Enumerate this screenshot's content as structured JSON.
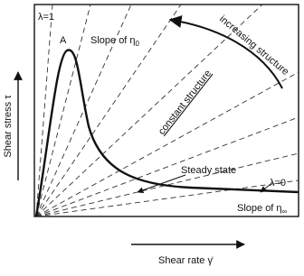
{
  "labels": {
    "lambda_one": "λ=1",
    "peak": "A",
    "slope_zero": {
      "text": "Slope of η",
      "subscript": "0"
    },
    "increasing": "increasing structure",
    "constant": "constant structure",
    "steady": "Steady state",
    "lambda_zero": "λ=0",
    "slope_inf": {
      "text": "Slope of η",
      "subscript": "∞"
    },
    "y_axis": "Shear stress τ",
    "x_axis": "Shear rate γ̇"
  }
}
